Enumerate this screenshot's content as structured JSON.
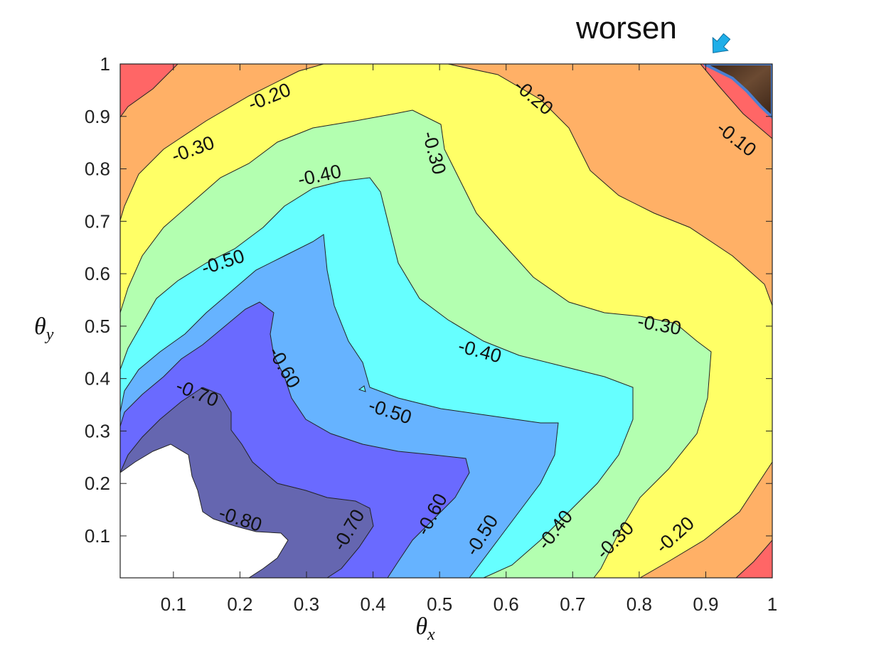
{
  "chart_data": {
    "type": "contour",
    "title": "",
    "xlabel": {
      "main": "θ",
      "sub": "x"
    },
    "ylabel": {
      "main": "θ",
      "sub": "y"
    },
    "xlim": [
      0.02,
      1.0
    ],
    "ylim": [
      0.02,
      1.0
    ],
    "xticks": [
      "0.1",
      "0.2",
      "0.3",
      "0.4",
      "0.5",
      "0.6",
      "0.7",
      "0.8",
      "0.9",
      "1"
    ],
    "yticks": [
      "0.1",
      "0.2",
      "0.3",
      "0.4",
      "0.5",
      "0.6",
      "0.7",
      "0.8",
      "0.9",
      "1"
    ],
    "grid": false,
    "levels": [
      -0.8,
      -0.7,
      -0.6,
      -0.5,
      -0.4,
      -0.3,
      -0.2,
      -0.1
    ],
    "band_colors": {
      "below_-0.8": "#ffffff",
      "-0.8_to_-0.7": "#6566b0",
      "-0.7_to_-0.6": "#6a6aff",
      "-0.6_to_-0.5": "#66b3ff",
      "-0.5_to_-0.4": "#66ffff",
      "-0.4_to_-0.3": "#b3ffb0",
      "-0.3_to_-0.2": "#ffff66",
      "-0.2_to_-0.1": "#ffb066",
      "-0.1_to_0": "#ff6666",
      "above_0": "#4a3020"
    },
    "contour_labels": [
      {
        "text": "-0.20",
        "x": 0.245,
        "y": 0.935
      },
      {
        "text": "-0.20",
        "x": 0.64,
        "y": 0.935
      },
      {
        "text": "-0.10",
        "x": 0.945,
        "y": 0.855
      },
      {
        "text": "-0.30",
        "x": 0.13,
        "y": 0.835
      },
      {
        "text": "-0.40",
        "x": 0.32,
        "y": 0.785
      },
      {
        "text": "-0.30",
        "x": 0.49,
        "y": 0.83
      },
      {
        "text": "-0.50",
        "x": 0.175,
        "y": 0.62
      },
      {
        "text": "-0.30",
        "x": 0.83,
        "y": 0.5
      },
      {
        "text": "-0.40",
        "x": 0.56,
        "y": 0.45
      },
      {
        "text": "-0.60",
        "x": 0.265,
        "y": 0.42
      },
      {
        "text": "-0.70",
        "x": 0.135,
        "y": 0.37
      },
      {
        "text": "-0.50",
        "x": 0.425,
        "y": 0.335
      },
      {
        "text": "-0.80",
        "x": 0.2,
        "y": 0.13
      },
      {
        "text": "-0.70",
        "x": 0.365,
        "y": 0.11
      },
      {
        "text": "-0.60",
        "x": 0.49,
        "y": 0.14
      },
      {
        "text": "-0.50",
        "x": 0.565,
        "y": 0.1
      },
      {
        "text": "-0.40",
        "x": 0.675,
        "y": 0.11
      },
      {
        "text": "-0.30",
        "x": 0.765,
        "y": 0.09
      },
      {
        "text": "-0.20",
        "x": 0.855,
        "y": 0.1
      }
    ],
    "annotations": [
      {
        "text": "worsen",
        "x": 0.97,
        "y": 1.0
      }
    ],
    "highlight_region": {
      "points": [
        [
          0.9,
          1.0
        ],
        [
          1.0,
          1.0
        ],
        [
          1.0,
          0.9
        ],
        [
          0.97,
          0.91
        ],
        [
          0.945,
          0.945
        ]
      ],
      "fill": "#4a3020",
      "stroke": "#4a7fd0"
    },
    "arrow_color": "#1eaee8"
  }
}
